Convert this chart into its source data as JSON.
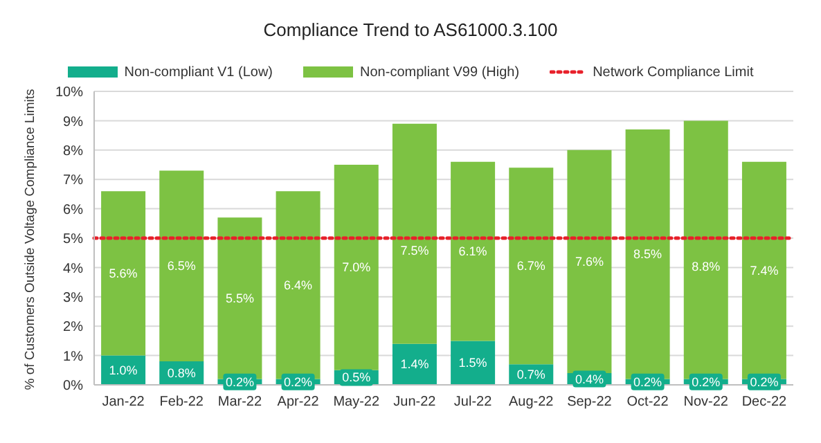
{
  "chart_data": {
    "type": "bar",
    "title": "Compliance Trend to AS61000.3.100",
    "ylabel": "% of Customers Outside Voltage Compliance Limits",
    "categories": [
      "Jan-22",
      "Feb-22",
      "Mar-22",
      "Apr-22",
      "May-22",
      "Jun-22",
      "Jul-22",
      "Aug-22",
      "Sep-22",
      "Oct-22",
      "Nov-22",
      "Dec-22"
    ],
    "stacked": true,
    "series": [
      {
        "name": "Non-compliant V1 (Low)",
        "color": "#13ae8c",
        "values": [
          1.0,
          0.8,
          0.2,
          0.2,
          0.5,
          1.4,
          1.5,
          0.7,
          0.4,
          0.2,
          0.2,
          0.2
        ],
        "value_labels": [
          "1.0%",
          "0.8%",
          "0.2%",
          "0.2%",
          "0.5%",
          "1.4%",
          "1.5%",
          "0.7%",
          "0.4%",
          "0.2%",
          "0.2%",
          "0.2%"
        ]
      },
      {
        "name": "Non-compliant V99 (High)",
        "color": "#7dc243",
        "values": [
          5.6,
          6.5,
          5.5,
          6.4,
          7.0,
          7.5,
          6.1,
          6.7,
          7.6,
          8.5,
          8.8,
          7.4
        ],
        "value_labels": [
          "5.6%",
          "6.5%",
          "5.5%",
          "6.4%",
          "7.0%",
          "7.5%",
          "6.1%",
          "6.7%",
          "7.6%",
          "8.5%",
          "8.8%",
          "7.4%"
        ]
      }
    ],
    "ylim": [
      0,
      10
    ],
    "yticks": [
      {
        "value": 0,
        "label": "0%"
      },
      {
        "value": 1,
        "label": "1%"
      },
      {
        "value": 2,
        "label": "2%"
      },
      {
        "value": 3,
        "label": "3%"
      },
      {
        "value": 4,
        "label": "4%"
      },
      {
        "value": 5,
        "label": "5%"
      },
      {
        "value": 6,
        "label": "6%"
      },
      {
        "value": 7,
        "label": "7%"
      },
      {
        "value": 8,
        "label": "8%"
      },
      {
        "value": 9,
        "label": "9%"
      },
      {
        "value": 10,
        "label": "10%"
      }
    ],
    "ref_lines": [
      {
        "axis": "y",
        "value": 5,
        "label": "Network Compliance Limit",
        "color": "#e8202a",
        "line_style": "dotted"
      }
    ],
    "grid": "y",
    "legend": "top"
  }
}
